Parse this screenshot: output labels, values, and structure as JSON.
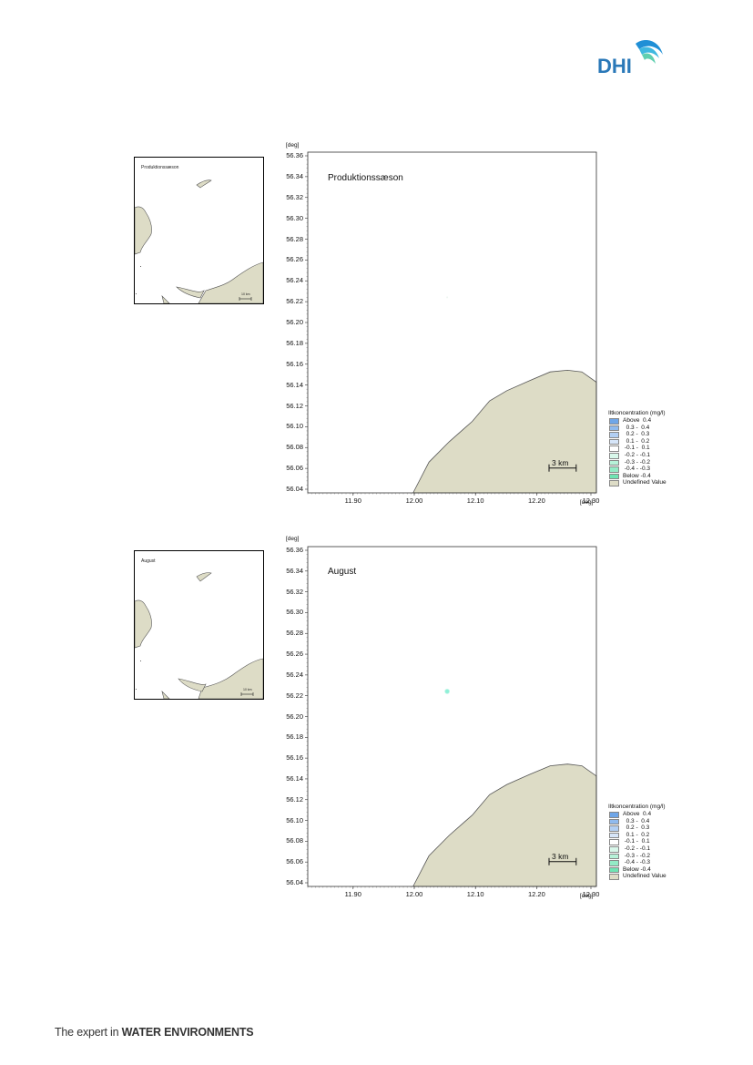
{
  "footer": {
    "prefix": "The expert in ",
    "emphasis": "WATER ENVIRONMENTS"
  },
  "logo_text": "DHI",
  "colors": {
    "land": "#dddcc6",
    "land_edge": "#555555",
    "dot": "#8ff0d8"
  },
  "panels": [
    {
      "inset_title": "Produktionssæson",
      "inset_scale": "10 km",
      "title": "Produktionssæson",
      "unit_y": "[deg]",
      "unit_x": "[deg]",
      "yticks": [
        "56.36",
        "56.34",
        "56.32",
        "56.30",
        "56.28",
        "56.26",
        "56.24",
        "56.22",
        "56.20",
        "56.18",
        "56.16",
        "56.14",
        "56.12",
        "56.10",
        "56.08",
        "56.06",
        "56.04"
      ],
      "xticks": [
        "11.90",
        "12.00",
        "12.10",
        "12.20",
        "12.30"
      ],
      "scale_label": "3 km",
      "dot_visible": false
    },
    {
      "inset_title": "August",
      "inset_scale": "10 km",
      "title": "August",
      "unit_y": "[deg]",
      "unit_x": "[deg]",
      "yticks": [
        "56.36",
        "56.34",
        "56.32",
        "56.30",
        "56.28",
        "56.26",
        "56.24",
        "56.22",
        "56.20",
        "56.18",
        "56.16",
        "56.14",
        "56.12",
        "56.10",
        "56.08",
        "56.06",
        "56.04"
      ],
      "xticks": [
        "11.90",
        "12.00",
        "12.10",
        "12.20",
        "12.30"
      ],
      "scale_label": "3 km",
      "dot_visible": true
    }
  ],
  "legend": {
    "title": "Iltkoncentration (mg/l)",
    "items": [
      {
        "label": "Above  0.4",
        "color": "#6fa6e8"
      },
      {
        "label": "  0.3 -  0.4",
        "color": "#8fbaee"
      },
      {
        "label": "  0.2 -  0.3",
        "color": "#b2cff3"
      },
      {
        "label": "  0.1 -  0.2",
        "color": "#d6e5f8"
      },
      {
        "label": " -0.1 -  0.1",
        "color": "#ffffff"
      },
      {
        "label": " -0.2 - -0.1",
        "color": "#d8f7ea"
      },
      {
        "label": " -0.3 - -0.2",
        "color": "#b6f1d8"
      },
      {
        "label": " -0.4 - -0.3",
        "color": "#93ebc6"
      },
      {
        "label": "Below -0.4",
        "color": "#6fe4b3"
      },
      {
        "label": "Undefined Value",
        "color": "#dddcc6"
      }
    ]
  }
}
